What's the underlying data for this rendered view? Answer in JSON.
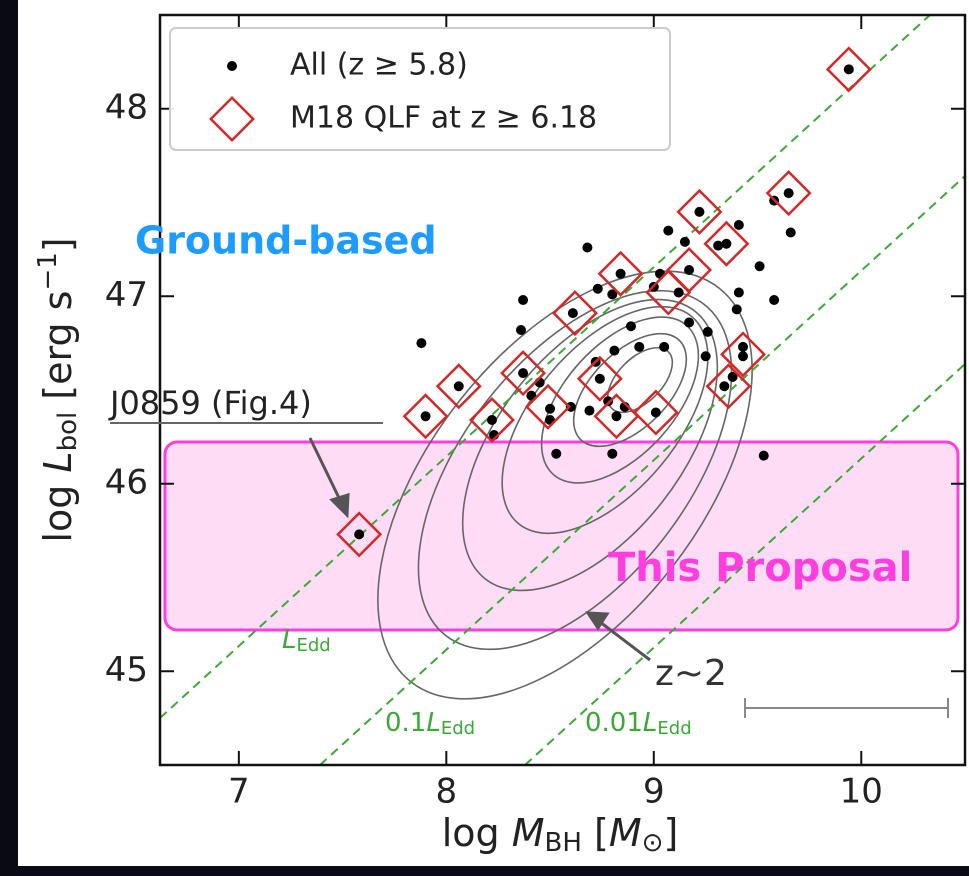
{
  "chart_data": {
    "type": "scatter",
    "xlabel": [
      "log ",
      "M",
      "BH",
      " [",
      "M",
      "⊙",
      "]"
    ],
    "ylabel": [
      "log ",
      "L",
      "bol",
      " [erg s",
      "−1",
      "]"
    ],
    "xlim": [
      6.62,
      10.5
    ],
    "ylim": [
      44.5,
      48.5
    ],
    "xticks": [
      7,
      8,
      9,
      10
    ],
    "yticks": [
      45,
      46,
      47,
      48
    ],
    "legend": "upper left",
    "series": [
      {
        "name": "All (z ≥ 5.8)",
        "color": "#000000",
        "marker": "dot",
        "x": [
          9.94,
          9.65,
          9.58,
          9.66,
          9.22,
          9.41,
          9.35,
          9.31,
          9.15,
          9.07,
          8.68,
          8.84,
          9.03,
          9.17,
          9.51,
          9.0,
          8.8,
          9.12,
          8.73,
          8.37,
          9.41,
          9.58,
          8.61,
          8.36,
          8.89,
          9.17,
          9.26,
          9.4,
          7.88,
          9.05,
          8.93,
          8.81,
          9.25,
          9.43,
          8.37,
          8.72,
          8.74,
          8.06,
          8.45,
          9.34,
          9.43,
          9.38,
          8.78,
          8.6,
          8.5,
          8.41,
          8.82,
          8.86,
          8.69,
          9.01,
          7.9,
          8.22,
          8.23,
          8.5,
          8.53,
          8.8,
          9.53,
          7.58
        ],
        "values": [
          48.21,
          47.55,
          47.51,
          47.34,
          47.45,
          47.38,
          47.28,
          47.27,
          47.29,
          47.35,
          47.26,
          47.12,
          47.12,
          47.14,
          47.16,
          47.05,
          47.01,
          47.02,
          47.04,
          46.98,
          47.02,
          46.98,
          46.91,
          46.82,
          46.84,
          46.86,
          46.81,
          46.93,
          46.75,
          46.73,
          46.73,
          46.71,
          46.68,
          46.73,
          46.59,
          46.65,
          46.56,
          46.52,
          46.54,
          46.52,
          46.68,
          46.57,
          46.44,
          46.41,
          46.4,
          46.47,
          46.36,
          46.41,
          46.39,
          46.38,
          46.36,
          46.34,
          46.26,
          46.34,
          46.16,
          46.16,
          46.15,
          45.73
        ]
      },
      {
        "name": "M18 QLF at z ≥ 6.18",
        "color": "#d62728",
        "marker": "diamond",
        "x": [
          9.94,
          9.65,
          9.22,
          9.35,
          8.84,
          9.17,
          9.07,
          8.62,
          8.37,
          8.74,
          9.43,
          9.36,
          8.06,
          7.9,
          8.22,
          8.49,
          8.82,
          9.01,
          7.58
        ],
        "values": [
          48.21,
          47.55,
          47.45,
          47.28,
          47.12,
          47.14,
          47.02,
          46.91,
          46.59,
          46.56,
          46.69,
          46.52,
          46.52,
          46.36,
          46.34,
          46.41,
          46.36,
          46.38,
          45.73
        ]
      }
    ],
    "annotations": {
      "ground": "Ground-based",
      "j0859": "J0859 (Fig.4)",
      "proposal": "This Proposal",
      "z2": "z~2",
      "edd1": [
        "L",
        "Edd"
      ],
      "edd2": [
        "0.1",
        "L",
        "Edd"
      ],
      "edd3": [
        "0.01",
        "L",
        "Edd"
      ]
    }
  }
}
